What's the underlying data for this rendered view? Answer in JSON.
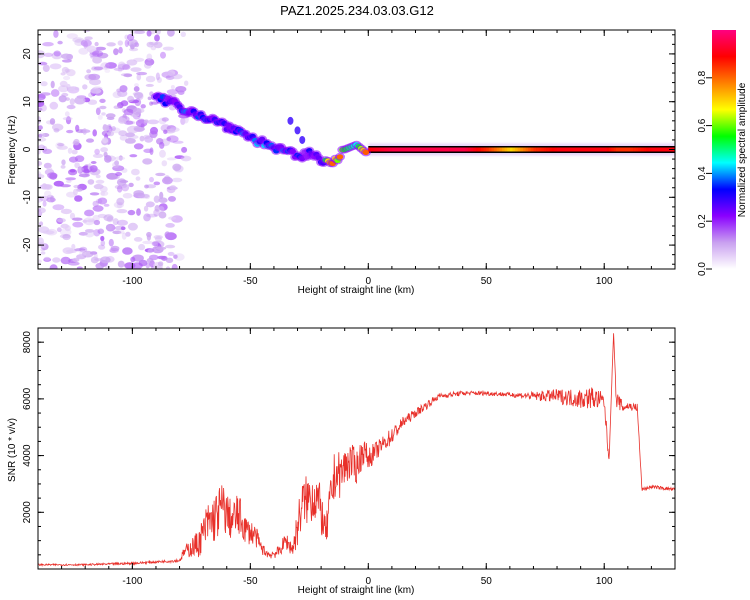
{
  "figure_title": "PAZ1.2025.234.03.03.G12",
  "chart_data": [
    {
      "type": "heatmap",
      "title": "PAZ1.2025.234.03.03.G12",
      "xlabel": "Height of straight line (km)",
      "ylabel": "Frequency (Hz)",
      "xlim": [
        -140,
        130
      ],
      "ylim": [
        -25,
        25
      ],
      "xticks": [
        -100,
        -50,
        0,
        50,
        100
      ],
      "yticks": [
        -20,
        -10,
        0,
        10,
        20
      ],
      "colorbar": {
        "label": "Normalized spectral amplitude",
        "range": [
          0,
          1
        ],
        "ticks": [
          0.0,
          0.2,
          0.4,
          0.6,
          0.8
        ],
        "tick_labels": [
          "0.0",
          "0.2",
          "0.4",
          "0.6",
          "0.8"
        ],
        "colormap": [
          "#ffffff",
          "#c9a0f0",
          "#8a00ff",
          "#0000ff",
          "#00ffff",
          "#00ff00",
          "#ffff00",
          "#ff8000",
          "#ff0000",
          "#ff0080"
        ]
      },
      "noise_region": {
        "x_range": [
          -140,
          -80
        ],
        "y_range": [
          -25,
          25
        ],
        "amplitude": 0.12
      },
      "ridge": [
        {
          "x": -90,
          "freq": 11,
          "amp": 0.25
        },
        {
          "x": -85,
          "freq": 10,
          "amp": 0.3
        },
        {
          "x": -80,
          "freq": 9,
          "amp": 0.32
        },
        {
          "x": -75,
          "freq": 8,
          "amp": 0.3
        },
        {
          "x": -70,
          "freq": 7,
          "amp": 0.3
        },
        {
          "x": -65,
          "freq": 6,
          "amp": 0.3
        },
        {
          "x": -60,
          "freq": 5,
          "amp": 0.3
        },
        {
          "x": -55,
          "freq": 4,
          "amp": 0.3
        },
        {
          "x": -50,
          "freq": 2.5,
          "amp": 0.32
        },
        {
          "x": -45,
          "freq": 1.5,
          "amp": 0.33
        },
        {
          "x": -40,
          "freq": 0.5,
          "amp": 0.35
        },
        {
          "x": -35,
          "freq": -0.5,
          "amp": 0.3
        },
        {
          "x": -30,
          "freq": -1.5,
          "amp": 0.3
        },
        {
          "x": -25,
          "freq": -1,
          "amp": 0.25
        },
        {
          "x": -20,
          "freq": -2,
          "amp": 0.3
        },
        {
          "x": -15,
          "freq": -2.5,
          "amp": 0.75
        },
        {
          "x": -10,
          "freq": 0,
          "amp": 0.55
        },
        {
          "x": -5,
          "freq": 1,
          "amp": 0.45
        },
        {
          "x": 0,
          "freq": -1,
          "amp": 0.9
        },
        {
          "x": 10,
          "freq": -1,
          "amp": 0.95
        },
        {
          "x": 20,
          "freq": -1,
          "amp": 0.95
        },
        {
          "x": 30,
          "freq": -1,
          "amp": 0.95
        },
        {
          "x": 40,
          "freq": -1,
          "amp": 0.95
        },
        {
          "x": 50,
          "freq": -1,
          "amp": 0.85
        },
        {
          "x": 60,
          "freq": 0,
          "amp": 0.7
        },
        {
          "x": 70,
          "freq": 0,
          "amp": 0.85
        },
        {
          "x": 80,
          "freq": 0,
          "amp": 0.9
        },
        {
          "x": 90,
          "freq": 0,
          "amp": 0.9
        },
        {
          "x": 100,
          "freq": 0,
          "amp": 0.9
        },
        {
          "x": 105,
          "freq": 0,
          "amp": 0.85
        },
        {
          "x": 110,
          "freq": 0,
          "amp": 0.85
        },
        {
          "x": 120,
          "freq": 0,
          "amp": 0.9
        },
        {
          "x": 130,
          "freq": 0,
          "amp": 0.9
        }
      ],
      "spur": [
        {
          "x": -33,
          "freq": 6
        },
        {
          "x": -30,
          "freq": 4
        },
        {
          "x": -28,
          "freq": 2
        }
      ]
    },
    {
      "type": "line",
      "xlabel": "Height of straight line (km)",
      "ylabel": "SNR (10 * v/v)",
      "xlim": [
        -140,
        130
      ],
      "ylim": [
        0,
        8500
      ],
      "xticks": [
        -100,
        -50,
        0,
        50,
        100
      ],
      "yticks": [
        2000,
        4000,
        6000,
        8000
      ],
      "series": [
        {
          "name": "SNR",
          "color": "#e8302a",
          "x": [
            -140,
            -120,
            -100,
            -90,
            -80,
            -78,
            -72,
            -68,
            -65,
            -62,
            -58,
            -55,
            -52,
            -48,
            -45,
            -42,
            -38,
            -35,
            -32,
            -30,
            -28,
            -25,
            -22,
            -20,
            -18,
            -16,
            -14,
            -12,
            -10,
            -8,
            -5,
            -2,
            0,
            5,
            10,
            15,
            20,
            25,
            30,
            40,
            50,
            60,
            70,
            80,
            90,
            95,
            100,
            102,
            104,
            105,
            108,
            110,
            113,
            114,
            116,
            120,
            125,
            130
          ],
          "y": [
            150,
            150,
            200,
            250,
            300,
            600,
            900,
            1600,
            1800,
            2200,
            1700,
            1900,
            1400,
            1200,
            700,
            500,
            600,
            1000,
            700,
            1500,
            2300,
            2500,
            2600,
            2000,
            1200,
            2400,
            3400,
            3300,
            3600,
            3800,
            3600,
            4200,
            3900,
            4300,
            4700,
            5200,
            5500,
            5800,
            6100,
            6200,
            6200,
            6150,
            6100,
            6100,
            6000,
            6050,
            5900,
            3800,
            8400,
            6000,
            5700,
            5750,
            5700,
            5700,
            2800,
            2900,
            2850,
            2800
          ],
          "noise": [
            30,
            30,
            40,
            40,
            60,
            200,
            500,
            800,
            900,
            900,
            700,
            800,
            500,
            400,
            200,
            150,
            200,
            300,
            300,
            700,
            900,
            900,
            1000,
            800,
            500,
            900,
            900,
            800,
            700,
            700,
            600,
            500,
            400,
            300,
            300,
            200,
            150,
            150,
            100,
            80,
            80,
            80,
            150,
            250,
            350,
            400,
            300,
            200,
            0,
            300,
            200,
            150,
            150,
            150,
            60,
            60,
            60,
            60
          ]
        }
      ]
    }
  ]
}
